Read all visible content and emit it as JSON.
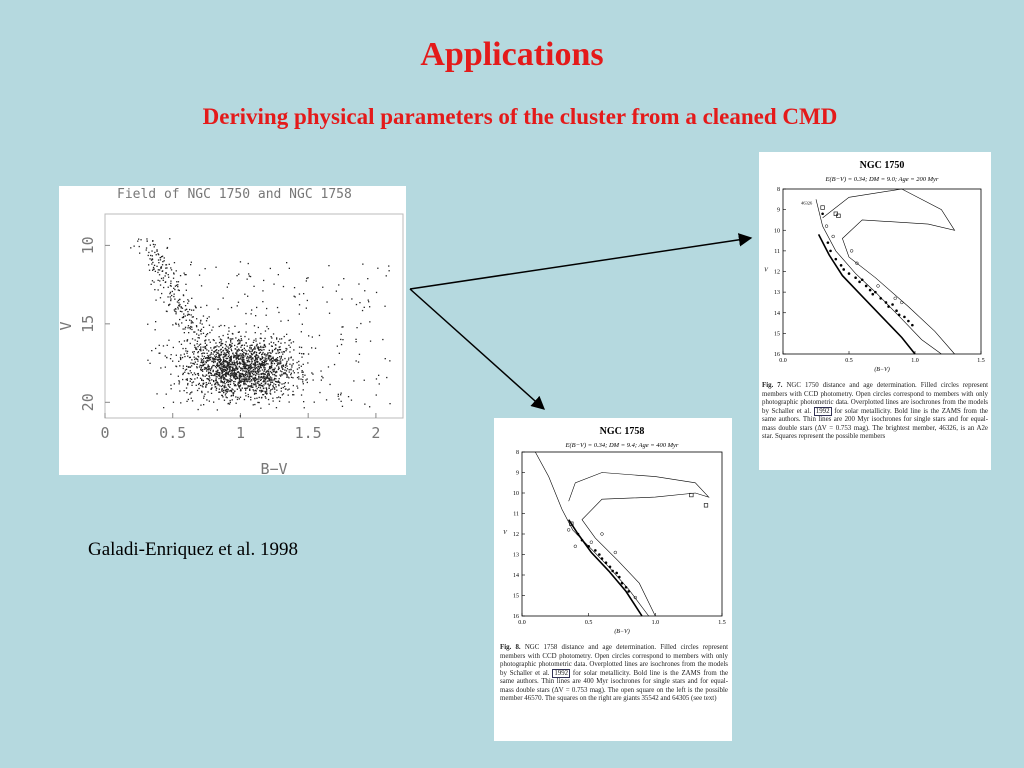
{
  "slide": {
    "title": "Applications",
    "subtitle": "Deriving physical parameters of the cluster from a cleaned CMD",
    "credit": "Galadi-Enriquez et al. 1998"
  },
  "chart_data": [
    {
      "id": "field",
      "type": "scatter",
      "title": "Field of NGC 1750 and NGC 1758",
      "xlabel": "B−V",
      "ylabel": "V",
      "xlim": [
        0,
        2.2
      ],
      "ylim": [
        21,
        8
      ],
      "xticks": [
        "0",
        "0.5",
        "1",
        "1.5",
        "2"
      ],
      "xtick_values": [
        0,
        0.5,
        1,
        1.5,
        2
      ],
      "yticks": [
        "10",
        "15",
        "20"
      ],
      "ytick_values": [
        10,
        15,
        20
      ],
      "stars_note": "dense field-star cloud centred near B−V≈1.0, V≈18; sparse bright sequence from B−V≈0.3, V≈9.5 down to the cloud",
      "grid": false
    },
    {
      "id": "ngc1750",
      "type": "scatter",
      "title": "NGC 1750",
      "params": "E(B−V) = 0.34;  DM = 9.0;  Age = 200 Myr",
      "xlabel": "(B−V)",
      "ylabel": "V",
      "xlim": [
        0,
        1.5
      ],
      "ylim": [
        16,
        8
      ],
      "xticks": [
        "0.0",
        "0.5",
        "1.0",
        "1.5"
      ],
      "xtick_values": [
        0,
        0.5,
        1.0,
        1.5
      ],
      "yticks": [
        "8",
        "9",
        "10",
        "11",
        "12",
        "13",
        "14",
        "15",
        "16"
      ],
      "ytick_values": [
        8,
        9,
        10,
        11,
        12,
        13,
        14,
        15,
        16
      ],
      "label_star": "46326",
      "caption_label": "Fig. 7.",
      "caption_pre": "NGC 1750 distance and age determination. Filled circles represent members with CCD photometry. Open circles correspond to members with only photographic photometric data. Overplotted lines are isochrones from the models by Schaller et al. ",
      "caption_year": "1992",
      "caption_post": " for solar metallicity. Bold line is the ZAMS from the same authors. Thin lines are 200 Myr isochrones for single stars and for equal-mass double stars (ΔV = 0.753 mag). The brightest member, 46326, is an A2e star. Squares represent the possible members",
      "zams": [
        [
          0.27,
          10.2
        ],
        [
          0.35,
          11.2
        ],
        [
          0.45,
          12.2
        ],
        [
          0.6,
          13.2
        ],
        [
          0.75,
          14.2
        ],
        [
          0.9,
          15.2
        ],
        [
          1.0,
          16
        ]
      ],
      "isochrone_single": [
        [
          0.25,
          8.5
        ],
        [
          0.3,
          9.8
        ],
        [
          0.4,
          11.0
        ],
        [
          0.55,
          12.1
        ],
        [
          0.7,
          13.0
        ],
        [
          0.9,
          14.3
        ],
        [
          1.05,
          15.3
        ],
        [
          1.2,
          16
        ]
      ],
      "isochrone_double": [
        [
          0.3,
          9.4
        ],
        [
          0.5,
          8.4
        ],
        [
          0.9,
          8.0
        ],
        [
          1.2,
          9.0
        ],
        [
          1.3,
          10.0
        ],
        [
          1.1,
          9.7
        ],
        [
          0.6,
          9.5
        ],
        [
          0.45,
          10.4
        ],
        [
          0.5,
          11.3
        ],
        [
          0.7,
          12.3
        ],
        [
          0.95,
          13.7
        ],
        [
          1.15,
          14.9
        ],
        [
          1.3,
          16
        ]
      ],
      "members_filled": [
        [
          0.3,
          9.2
        ],
        [
          0.34,
          10.6
        ],
        [
          0.36,
          11.0
        ],
        [
          0.4,
          11.4
        ],
        [
          0.44,
          11.7
        ],
        [
          0.46,
          11.9
        ],
        [
          0.5,
          12.1
        ],
        [
          0.55,
          12.3
        ],
        [
          0.58,
          12.5
        ],
        [
          0.6,
          12.4
        ],
        [
          0.63,
          12.7
        ],
        [
          0.66,
          12.9
        ],
        [
          0.68,
          13.1
        ],
        [
          0.7,
          13.0
        ],
        [
          0.74,
          13.3
        ],
        [
          0.78,
          13.5
        ],
        [
          0.8,
          13.7
        ],
        [
          0.83,
          13.6
        ],
        [
          0.86,
          13.9
        ],
        [
          0.88,
          14.1
        ],
        [
          0.92,
          14.2
        ],
        [
          0.95,
          14.4
        ],
        [
          0.98,
          14.6
        ]
      ],
      "members_open": [
        [
          0.33,
          9.8
        ],
        [
          0.38,
          10.3
        ],
        [
          0.52,
          11.0
        ],
        [
          0.56,
          11.6
        ],
        [
          0.72,
          12.7
        ],
        [
          0.85,
          13.3
        ],
        [
          0.9,
          13.5
        ]
      ],
      "squares": [
        [
          0.3,
          8.9
        ],
        [
          0.4,
          9.2
        ],
        [
          0.42,
          9.3
        ]
      ]
    },
    {
      "id": "ngc1758",
      "type": "scatter",
      "title": "NGC 1758",
      "params": "E(B−V) = 0.34;  DM = 9.4;  Age = 400 Myr",
      "xlabel": "(B−V)",
      "ylabel": "V",
      "xlim": [
        0,
        1.5
      ],
      "ylim": [
        16,
        8
      ],
      "xticks": [
        "0.0",
        "0.5",
        "1.0",
        "1.5"
      ],
      "xtick_values": [
        0,
        0.5,
        1.0,
        1.5
      ],
      "yticks": [
        "8",
        "9",
        "10",
        "11",
        "12",
        "13",
        "14",
        "15",
        "16"
      ],
      "ytick_values": [
        8,
        9,
        10,
        11,
        12,
        13,
        14,
        15,
        16
      ],
      "caption_label": "Fig. 8.",
      "caption_pre": "NGC 1758 distance and age determination. Filled circles represent members with CCD photometry. Open circles correspond to members with only photographic photometric data. Overplotted lines are isochrones from the models by Schaller et al. ",
      "caption_year": "1992",
      "caption_post": " for solar metallicity. Bold line is the ZAMS from the same authors. Thin lines are 400 Myr isochrones for single stars and for equal-mass double stars (ΔV = 0.753 mag). The open square on the left is the possible member 46570. The squares on the right are giants 35542 and 64305 (see text)",
      "zams": [
        [
          0.35,
          11.3
        ],
        [
          0.42,
          12.0
        ],
        [
          0.52,
          12.9
        ],
        [
          0.65,
          13.8
        ],
        [
          0.78,
          14.8
        ],
        [
          0.9,
          16
        ]
      ],
      "isochrone_single": [
        [
          0.1,
          8.0
        ],
        [
          0.2,
          9.2
        ],
        [
          0.3,
          10.8
        ],
        [
          0.38,
          11.8
        ],
        [
          0.5,
          12.6
        ],
        [
          0.65,
          13.6
        ],
        [
          0.8,
          14.7
        ],
        [
          0.95,
          16
        ]
      ],
      "isochrone_double": [
        [
          0.35,
          10.4
        ],
        [
          0.4,
          9.5
        ],
        [
          0.6,
          9.0
        ],
        [
          1.0,
          9.2
        ],
        [
          1.3,
          9.5
        ],
        [
          1.4,
          10.2
        ],
        [
          1.3,
          10.0
        ],
        [
          1.0,
          10.2
        ],
        [
          0.6,
          10.3
        ],
        [
          0.45,
          11.3
        ],
        [
          0.55,
          12.2
        ],
        [
          0.72,
          13.3
        ],
        [
          0.88,
          14.4
        ],
        [
          1.0,
          16
        ]
      ],
      "members_filled": [
        [
          0.42,
          12.0
        ],
        [
          0.45,
          12.3
        ],
        [
          0.5,
          12.6
        ],
        [
          0.55,
          12.8
        ],
        [
          0.58,
          13.0
        ],
        [
          0.6,
          13.2
        ],
        [
          0.63,
          13.4
        ],
        [
          0.66,
          13.6
        ],
        [
          0.68,
          13.8
        ],
        [
          0.71,
          13.9
        ],
        [
          0.73,
          14.1
        ],
        [
          0.75,
          14.4
        ],
        [
          0.78,
          14.6
        ],
        [
          0.8,
          14.8
        ]
      ],
      "members_open": [
        [
          0.35,
          11.8
        ],
        [
          0.4,
          12.6
        ],
        [
          0.52,
          12.4
        ],
        [
          0.6,
          12.0
        ],
        [
          0.7,
          12.9
        ],
        [
          0.85,
          15.1
        ]
      ],
      "squares": [
        [
          0.37,
          11.5
        ],
        [
          1.27,
          10.1
        ],
        [
          1.38,
          10.6
        ]
      ]
    }
  ]
}
